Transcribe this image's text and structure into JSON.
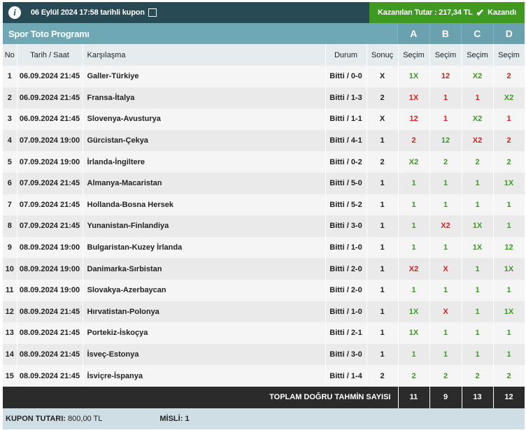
{
  "header": {
    "title": "06 Eylül 2024 17:58 tarihli kupon",
    "winnings": "Kazanılan Tutar : 217,34 TL",
    "status": "Kazandı"
  },
  "program": {
    "title": "Spor Toto Programı",
    "columns": [
      "A",
      "B",
      "C",
      "D"
    ]
  },
  "table": {
    "headers": {
      "no": "No",
      "date": "Tarih / Saat",
      "match": "Karşılaşma",
      "status": "Durum",
      "result": "Sonuç",
      "pick": "Seçim"
    },
    "rows": [
      {
        "no": "1",
        "date": "06.09.2024 21:45",
        "match": "Galler-Türkiye",
        "status": "Bitti / 0-0",
        "result": "X",
        "picks": [
          "1X",
          "12",
          "X2",
          "2"
        ]
      },
      {
        "no": "2",
        "date": "06.09.2024 21:45",
        "match": "Fransa-İtalya",
        "status": "Bitti / 1-3",
        "result": "2",
        "picks": [
          "1X",
          "1",
          "1",
          "X2"
        ]
      },
      {
        "no": "3",
        "date": "06.09.2024 21:45",
        "match": "Slovenya-Avusturya",
        "status": "Bitti / 1-1",
        "result": "X",
        "picks": [
          "12",
          "1",
          "X2",
          "1"
        ]
      },
      {
        "no": "4",
        "date": "07.09.2024 19:00",
        "match": "Gürcistan-Çekya",
        "status": "Bitti / 4-1",
        "result": "1",
        "picks": [
          "2",
          "12",
          "X2",
          "2"
        ]
      },
      {
        "no": "5",
        "date": "07.09.2024 19:00",
        "match": "İrlanda-İngiltere",
        "status": "Bitti / 0-2",
        "result": "2",
        "picks": [
          "X2",
          "2",
          "2",
          "2"
        ]
      },
      {
        "no": "6",
        "date": "07.09.2024 21:45",
        "match": "Almanya-Macaristan",
        "status": "Bitti / 5-0",
        "result": "1",
        "picks": [
          "1",
          "1",
          "1",
          "1X"
        ]
      },
      {
        "no": "7",
        "date": "07.09.2024 21:45",
        "match": "Hollanda-Bosna Hersek",
        "status": "Bitti / 5-2",
        "result": "1",
        "picks": [
          "1",
          "1",
          "1",
          "1"
        ]
      },
      {
        "no": "8",
        "date": "07.09.2024 21:45",
        "match": "Yunanistan-Finlandiya",
        "status": "Bitti / 3-0",
        "result": "1",
        "picks": [
          "1",
          "X2",
          "1X",
          "1"
        ]
      },
      {
        "no": "9",
        "date": "08.09.2024 19:00",
        "match": "Bulgaristan-Kuzey İrlanda",
        "status": "Bitti / 1-0",
        "result": "1",
        "picks": [
          "1",
          "1",
          "1X",
          "12"
        ]
      },
      {
        "no": "10",
        "date": "08.09.2024 19:00",
        "match": "Danimarka-Sırbistan",
        "status": "Bitti / 2-0",
        "result": "1",
        "picks": [
          "X2",
          "X",
          "1",
          "1X"
        ]
      },
      {
        "no": "11",
        "date": "08.09.2024 19:00",
        "match": "Slovakya-Azerbaycan",
        "status": "Bitti / 2-0",
        "result": "1",
        "picks": [
          "1",
          "1",
          "1",
          "1"
        ]
      },
      {
        "no": "12",
        "date": "08.09.2024 21:45",
        "match": "Hırvatistan-Polonya",
        "status": "Bitti / 1-0",
        "result": "1",
        "picks": [
          "1X",
          "X",
          "1",
          "1X"
        ]
      },
      {
        "no": "13",
        "date": "08.09.2024 21:45",
        "match": "Portekiz-İskoçya",
        "status": "Bitti / 2-1",
        "result": "1",
        "picks": [
          "1X",
          "1",
          "1",
          "1"
        ]
      },
      {
        "no": "14",
        "date": "08.09.2024 21:45",
        "match": "İsveç-Estonya",
        "status": "Bitti / 3-0",
        "result": "1",
        "picks": [
          "1",
          "1",
          "1",
          "1"
        ]
      },
      {
        "no": "15",
        "date": "08.09.2024 21:45",
        "match": "İsviçre-İspanya",
        "status": "Bitti / 1-4",
        "result": "2",
        "picks": [
          "2",
          "2",
          "2",
          "2"
        ]
      }
    ]
  },
  "totals": {
    "label": "TOPLAM DOĞRU TAHMİN SAYISI",
    "values": [
      "11",
      "9",
      "13",
      "12"
    ]
  },
  "footer": {
    "amount_label": "KUPON TUTARI:",
    "amount": "800,00 TL",
    "multiplier_label": "MİSLİ:",
    "multiplier": "1"
  },
  "colors": {
    "correct": "#3c9a24",
    "wrong": "#d81e1e",
    "win": "#3e9b20"
  }
}
